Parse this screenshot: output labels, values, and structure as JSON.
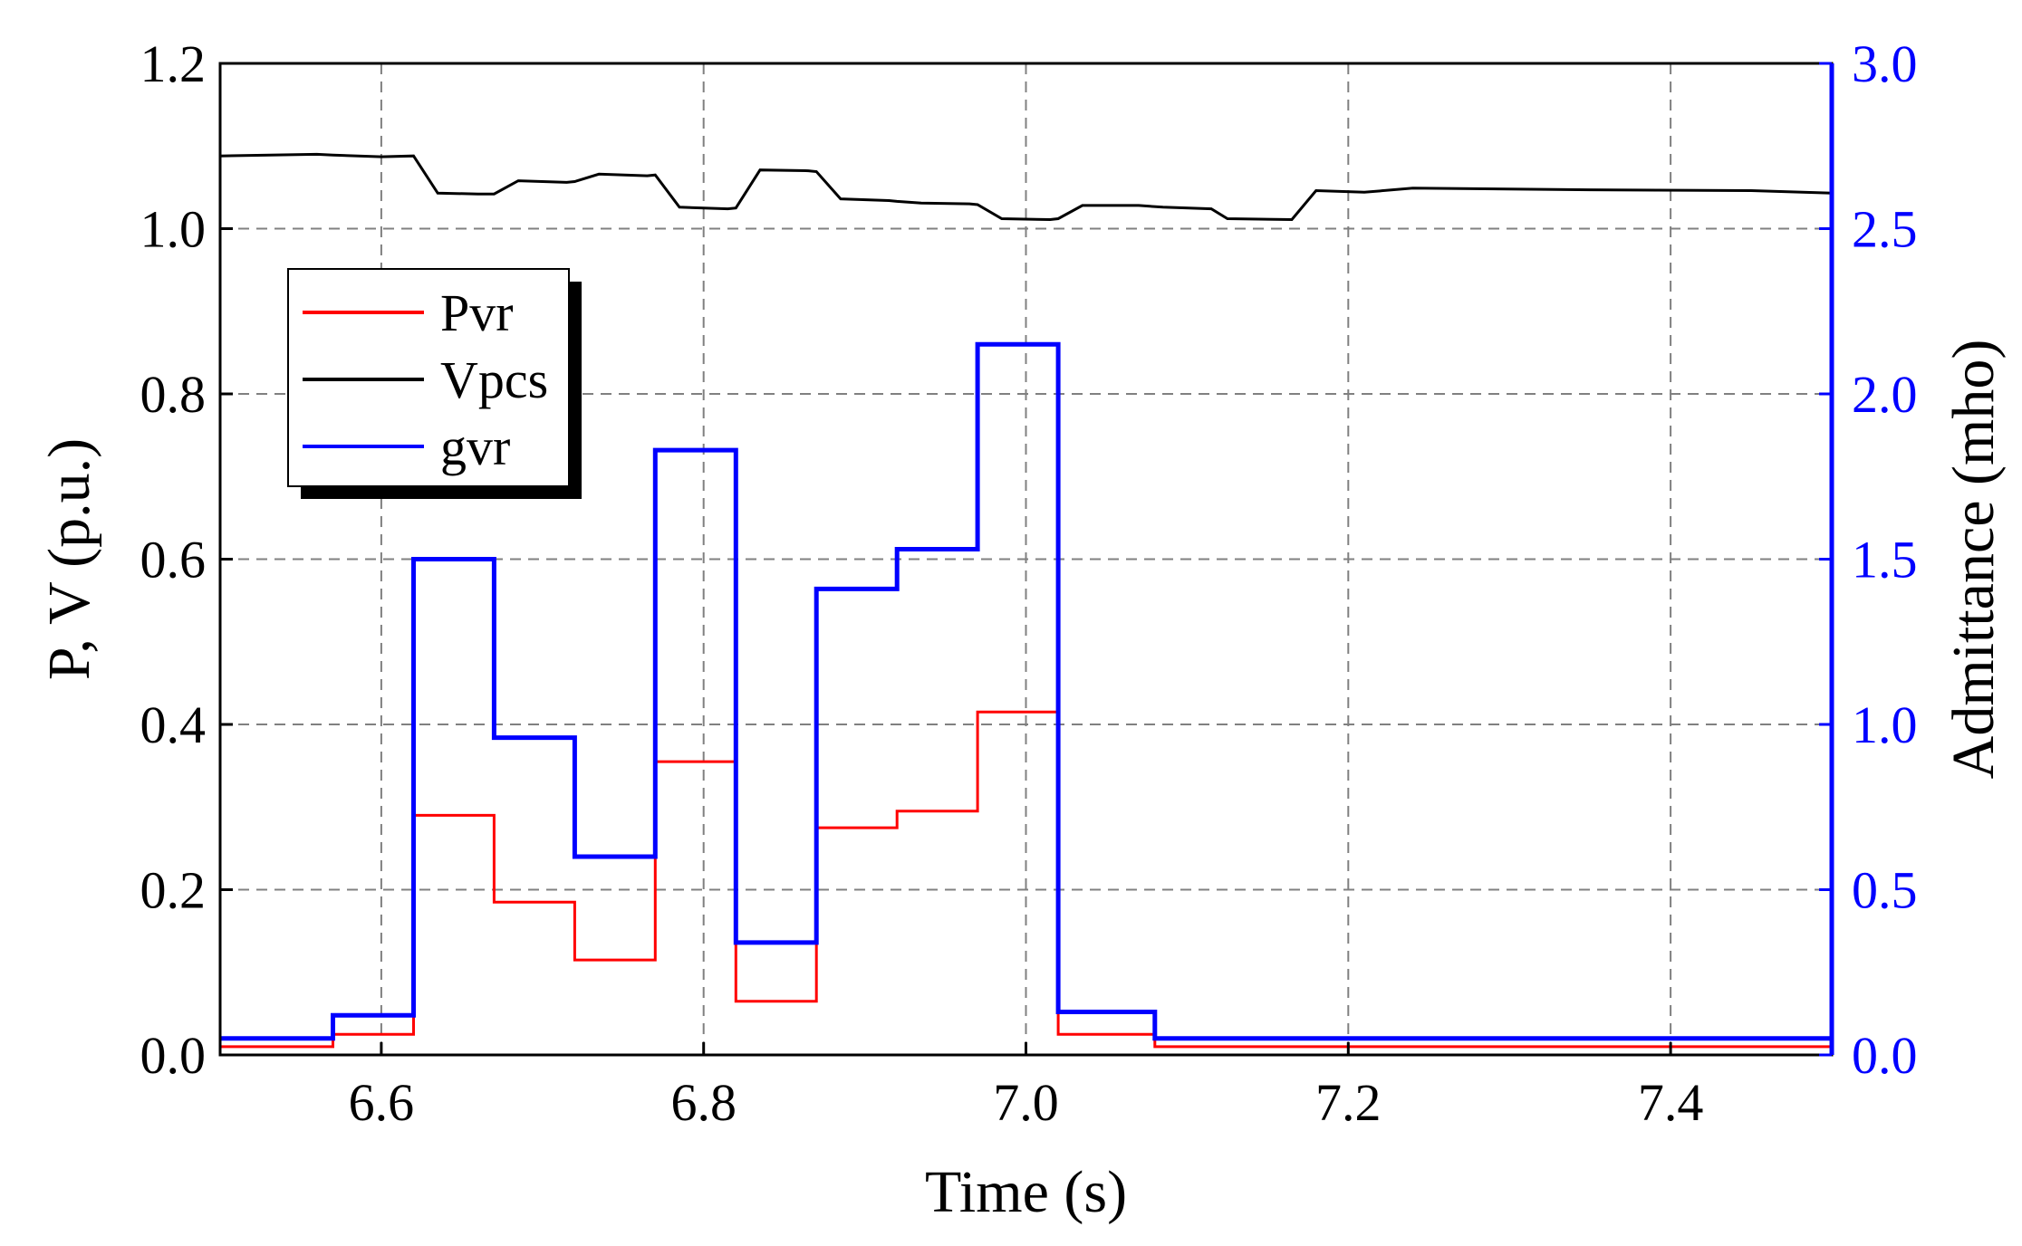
{
  "chart_data": {
    "type": "line",
    "xlabel": "Time (s)",
    "ylabel_left": "P, V (p.u.)",
    "ylabel_right": "Admittance (mho)",
    "xlim": [
      6.5,
      7.5
    ],
    "ylim_left": [
      0.0,
      1.2
    ],
    "ylim_right": [
      0.0,
      3.0
    ],
    "xticks": [
      "6.6",
      "6.8",
      "7.0",
      "7.2",
      "7.4"
    ],
    "yticks_left": [
      "0.0",
      "0.2",
      "0.4",
      "0.6",
      "0.8",
      "1.0",
      "1.2"
    ],
    "yticks_right": [
      "0.0",
      "0.5",
      "1.0",
      "1.5",
      "2.0",
      "2.5",
      "3.0"
    ],
    "grid": true,
    "legend_position": "upper-left",
    "series": [
      {
        "name": "Pvr",
        "axis": "left",
        "color": "#ff0000",
        "step": true,
        "x": [
          6.5,
          6.57,
          6.62,
          6.67,
          6.72,
          6.77,
          6.82,
          6.87,
          6.92,
          6.97,
          7.02,
          7.08,
          7.5
        ],
        "y": [
          0.01,
          0.025,
          0.29,
          0.185,
          0.115,
          0.355,
          0.065,
          0.275,
          0.295,
          0.415,
          0.025,
          0.01,
          0.01
        ]
      },
      {
        "name": "Vpcs",
        "axis": "left",
        "color": "#000000",
        "step": false,
        "x": [
          6.5,
          6.56,
          6.57,
          6.6,
          6.62,
          6.635,
          6.66,
          6.67,
          6.685,
          6.715,
          6.72,
          6.735,
          6.765,
          6.77,
          6.785,
          6.815,
          6.82,
          6.835,
          6.865,
          6.87,
          6.885,
          6.915,
          6.92,
          6.935,
          6.965,
          6.97,
          6.985,
          7.015,
          7.02,
          7.035,
          7.07,
          7.085,
          7.115,
          7.125,
          7.165,
          7.18,
          7.21,
          7.24,
          7.35,
          7.45,
          7.5
        ],
        "y": [
          1.088,
          1.09,
          1.089,
          1.087,
          1.088,
          1.043,
          1.042,
          1.042,
          1.058,
          1.056,
          1.057,
          1.066,
          1.064,
          1.065,
          1.026,
          1.024,
          1.025,
          1.071,
          1.07,
          1.069,
          1.036,
          1.034,
          1.033,
          1.031,
          1.03,
          1.029,
          1.012,
          1.011,
          1.012,
          1.028,
          1.028,
          1.026,
          1.024,
          1.012,
          1.011,
          1.046,
          1.044,
          1.049,
          1.047,
          1.046,
          1.043
        ]
      },
      {
        "name": "gvr",
        "axis": "right",
        "color": "#0000ff",
        "step": true,
        "x": [
          6.5,
          6.57,
          6.62,
          6.67,
          6.72,
          6.77,
          6.82,
          6.87,
          6.92,
          6.97,
          7.02,
          7.08,
          7.5
        ],
        "y": [
          0.05,
          0.12,
          1.5,
          0.96,
          0.6,
          1.83,
          0.34,
          1.41,
          1.53,
          2.15,
          0.13,
          0.05,
          0.05
        ]
      }
    ]
  }
}
